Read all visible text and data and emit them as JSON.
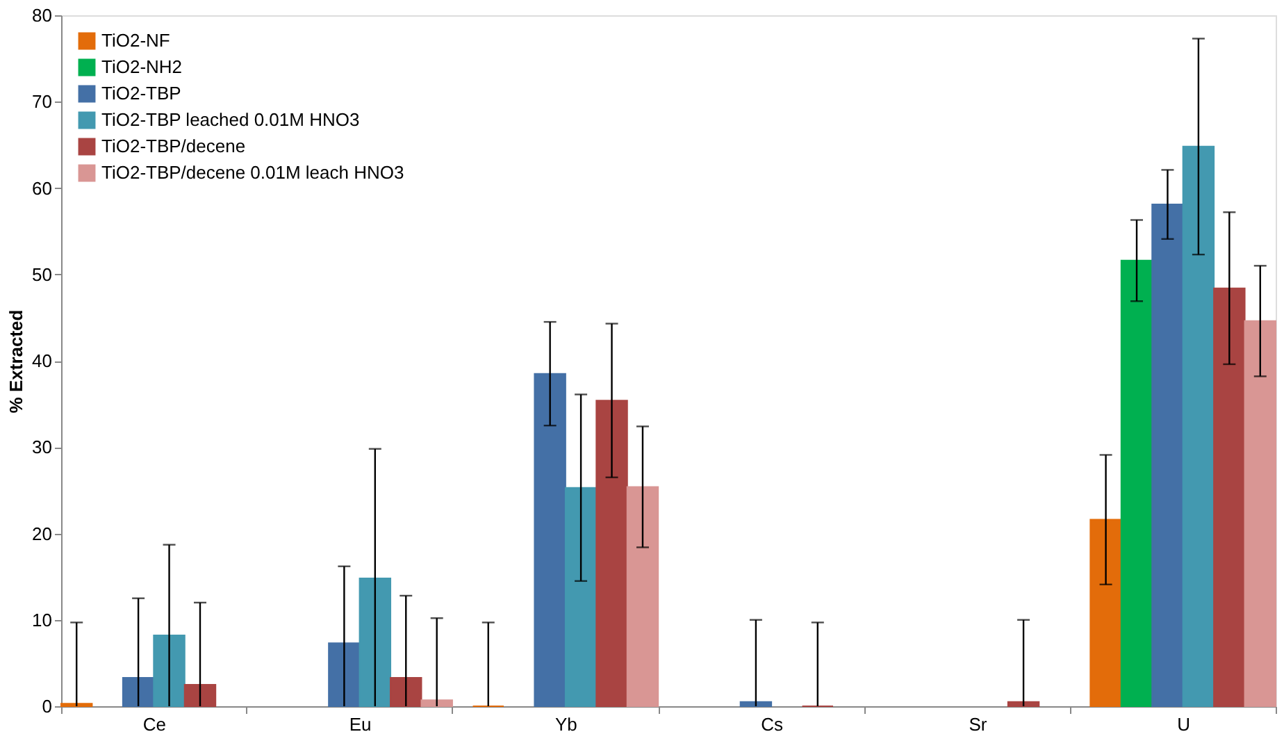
{
  "chart_data": {
    "type": "bar",
    "ylabel": "% Extracted",
    "categories": [
      "Ce",
      "Eu",
      "Yb",
      "Cs",
      "Sr",
      "U"
    ],
    "series": [
      {
        "name": "TiO2-NF",
        "color": "#e36c0a",
        "values": [
          0.3,
          null,
          0,
          null,
          null,
          21.6
        ],
        "errors": [
          [
            0,
            9.7
          ],
          null,
          [
            0,
            9.7
          ],
          null,
          null,
          7.5
        ]
      },
      {
        "name": "TiO2-NH2",
        "color": "#00b050",
        "values": [
          null,
          null,
          null,
          null,
          null,
          51.6
        ],
        "errors": [
          null,
          null,
          null,
          null,
          null,
          4.7
        ]
      },
      {
        "name": "TiO2-TBP",
        "color": "#4470a6",
        "values": [
          3.3,
          7.3,
          38.5,
          0.5,
          null,
          58.1
        ],
        "errors": [
          [
            0,
            12.5
          ],
          [
            0,
            16.2
          ],
          6,
          [
            0,
            10
          ],
          null,
          4
        ]
      },
      {
        "name": "TiO2-TBP leached 0.01M HNO3",
        "color": "#4399b0",
        "values": [
          8.2,
          14.8,
          25.3,
          null,
          null,
          64.8
        ],
        "errors": [
          [
            0,
            18.7
          ],
          [
            0,
            29.8
          ],
          10.8,
          null,
          null,
          12.5
        ]
      },
      {
        "name": "TiO2-TBP/decene",
        "color": "#a94442",
        "values": [
          2.5,
          3.3,
          35.4,
          0,
          0.5,
          48.4
        ],
        "errors": [
          [
            0,
            12
          ],
          [
            0,
            12.8
          ],
          8.9,
          [
            0,
            9.7
          ],
          [
            0,
            10
          ],
          8.8
        ]
      },
      {
        "name": "TiO2-TBP/decene 0.01M leach HNO3",
        "color": "#d99694",
        "values": [
          null,
          0.7,
          25.4,
          null,
          null,
          44.6
        ],
        "errors": [
          null,
          [
            0,
            10.2
          ],
          7,
          null,
          null,
          6.4
        ]
      }
    ],
    "ylim": [
      0,
      80
    ],
    "yticks": [
      0,
      10,
      20,
      30,
      40,
      50,
      60,
      70,
      80
    ],
    "grid": false,
    "legend": "top left"
  }
}
